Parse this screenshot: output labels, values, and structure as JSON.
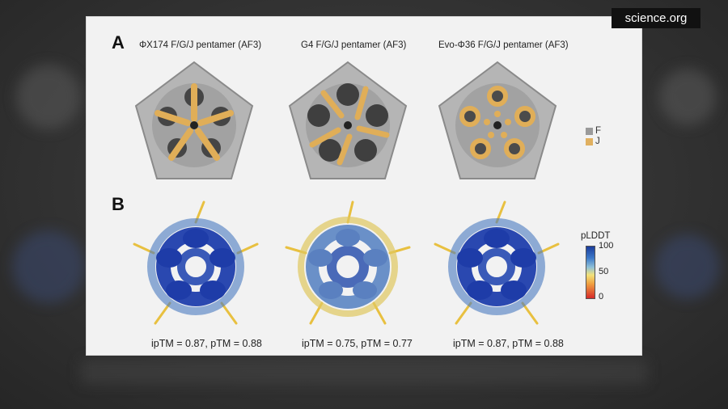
{
  "watermark": "science.org",
  "panels": {
    "a_label": "A",
    "b_label": "B"
  },
  "titles": [
    "ΦX174 F/G/J pentamer (AF3)",
    "G4 F/G/J pentamer (AF3)",
    "Evo-Φ36 F/G/J pentamer (AF3)"
  ],
  "legend": {
    "items": [
      {
        "label": "F",
        "color": "#9a9a9a"
      },
      {
        "label": "J",
        "color": "#e0b060"
      }
    ]
  },
  "colorbar": {
    "title": "pLDDT",
    "ticks": [
      "100",
      "50",
      "0"
    ]
  },
  "captions": [
    "ipTM = 0.87, pTM = 0.88",
    "ipTM = 0.75, pTM = 0.77",
    "ipTM = 0.87, pTM = 0.88"
  ]
}
